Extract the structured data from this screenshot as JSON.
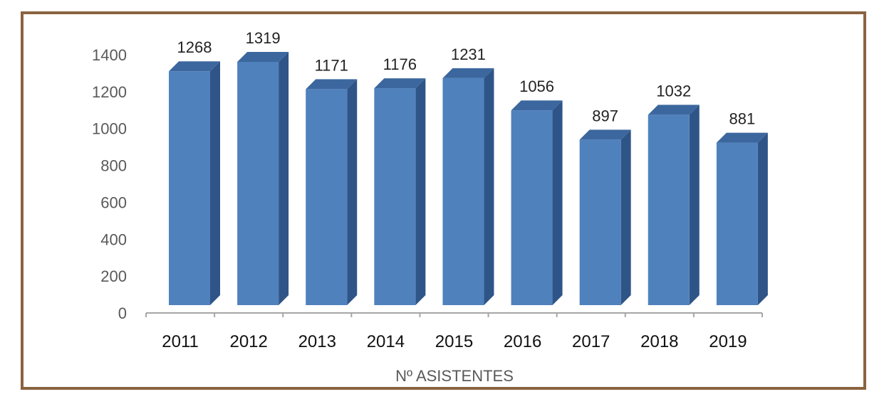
{
  "chart_data": {
    "type": "bar",
    "categories": [
      "2011",
      "2012",
      "2013",
      "2014",
      "2015",
      "2016",
      "2017",
      "2018",
      "2019"
    ],
    "values": [
      1268,
      1319,
      1171,
      1176,
      1231,
      1056,
      897,
      1032,
      881
    ],
    "xlabel": "Nº ASISTENTES",
    "ylabel": "",
    "ylim": [
      0,
      1400
    ],
    "yticks": [
      0,
      200,
      400,
      600,
      800,
      1000,
      1200,
      1400
    ],
    "grid": false,
    "legend": "none",
    "style": "3d-column",
    "colors": {
      "bar_front": "#4f81bd",
      "bar_side": "#2f5487",
      "bar_top": "#3c679e",
      "axis": "#a6a6a6",
      "frame": "#8a6340"
    }
  }
}
